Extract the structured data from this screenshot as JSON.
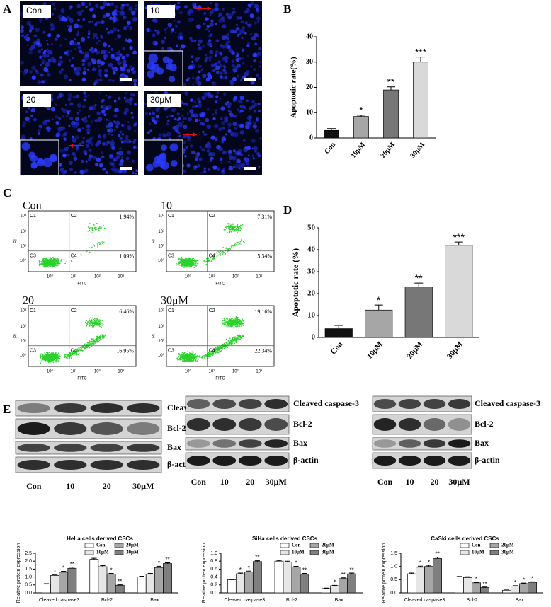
{
  "panel_labels": [
    "A",
    "B",
    "C",
    "D",
    "E"
  ],
  "fluorescence": {
    "labels": [
      "Con",
      "10",
      "20",
      "30μM"
    ]
  },
  "flow": {
    "x_label": "FITC",
    "y_label": "PI",
    "ticks": [
      "10⁰",
      "10¹",
      "10²",
      "10³"
    ],
    "quadrants": [
      "C1",
      "C2",
      "C3",
      "C4"
    ],
    "panels": [
      {
        "title": "Con",
        "upper_right": "1.94%",
        "lower_right": "1.09%"
      },
      {
        "title": "10",
        "upper_right": "7.31%",
        "lower_right": "5.34%"
      },
      {
        "title": "20",
        "upper_right": "6.46%",
        "lower_right": "16.95%"
      },
      {
        "title": "30μM",
        "upper_right": "19.16%",
        "lower_right": "22.34%"
      }
    ]
  },
  "blots": {
    "bands": [
      "Cleaved caspase-3",
      "Bcl-2",
      "Bax",
      "β-actin"
    ],
    "lanes": [
      "Con",
      "10",
      "20",
      "30μM"
    ]
  },
  "chart_data": [
    {
      "type": "bar",
      "ylabel": "Apoptotic rate(%)",
      "categories": [
        "Con",
        "10μM",
        "20μM",
        "30μM"
      ],
      "values": [
        3,
        8.5,
        19,
        30
      ],
      "errors": [
        0.7,
        0.5,
        1.2,
        2
      ],
      "significance": [
        null,
        "*",
        "**",
        "***"
      ],
      "colors": [
        "#111111",
        "#a6a6a6",
        "#777777",
        "#d9d9d9"
      ],
      "ylim": [
        0,
        40
      ],
      "yticks": [
        0,
        10,
        20,
        30,
        40
      ]
    },
    {
      "type": "bar",
      "ylabel": "Apoptotic rate (%)",
      "categories": [
        "Con",
        "10μM",
        "20μM",
        "30μM"
      ],
      "values": [
        4,
        12.5,
        23,
        42
      ],
      "errors": [
        1.5,
        2.3,
        1.8,
        1.5
      ],
      "significance": [
        null,
        "*",
        "**",
        "***"
      ],
      "colors": [
        "#111111",
        "#a6a6a6",
        "#777777",
        "#d9d9d9"
      ],
      "ylim": [
        0,
        50
      ],
      "yticks": [
        0,
        10,
        20,
        30,
        40,
        50
      ]
    },
    {
      "type": "bar",
      "title": "HeLa cells derived CSCs",
      "ylabel": "Relative protein expression",
      "categories": [
        "Cleaved caspase3",
        "Bcl-2",
        "Bax"
      ],
      "series": [
        {
          "name": "Con",
          "color": "#ffffff",
          "values": [
            0.55,
            2.12,
            1.0
          ],
          "errors": [
            0.03,
            0.06,
            0.05
          ],
          "significance": [
            null,
            null,
            null
          ]
        },
        {
          "name": "10μM",
          "color": "#e6e6e6",
          "values": [
            1.1,
            1.65,
            1.18
          ],
          "errors": [
            0.05,
            0.07,
            0.05
          ],
          "significance": [
            "*",
            null,
            null
          ]
        },
        {
          "name": "20μM",
          "color": "#a6a6a6",
          "values": [
            1.3,
            1.18,
            1.6
          ],
          "errors": [
            0.06,
            0.05,
            0.08
          ],
          "significance": [
            "*",
            "*",
            "*"
          ]
        },
        {
          "name": "30μM",
          "color": "#7f7f7f",
          "values": [
            1.55,
            0.48,
            1.85
          ],
          "errors": [
            0.07,
            0.03,
            0.05
          ],
          "significance": [
            "**",
            "**",
            "**"
          ]
        }
      ],
      "ylim": [
        0,
        2.5
      ],
      "yticks": [
        {
          "value": 0,
          "label": "0.0"
        },
        0.5,
        {
          "value": 1,
          "label": "1.0"
        },
        1.5,
        {
          "value": 2,
          "label": "2.0"
        },
        2.5
      ]
    },
    {
      "type": "bar",
      "title": "SiHa cells derived CSCs",
      "ylabel": "Relative protein expression",
      "categories": [
        "Cleaved caspase3",
        "Bcl-2",
        "Bax"
      ],
      "series": [
        {
          "name": "Con",
          "color": "#ffffff",
          "values": [
            0.33,
            0.8,
            0.11
          ],
          "errors": [
            0.01,
            0.02,
            0.01
          ],
          "significance": [
            null,
            null,
            null
          ]
        },
        {
          "name": "10μM",
          "color": "#e6e6e6",
          "values": [
            0.48,
            0.78,
            0.18
          ],
          "errors": [
            0.02,
            0.02,
            0.01
          ],
          "significance": [
            "*",
            null,
            "*"
          ]
        },
        {
          "name": "20μM",
          "color": "#a6a6a6",
          "values": [
            0.53,
            0.65,
            0.36
          ],
          "errors": [
            0.02,
            0.02,
            0.02
          ],
          "significance": [
            "*",
            "*",
            "**"
          ]
        },
        {
          "name": "30μM",
          "color": "#7f7f7f",
          "values": [
            0.79,
            0.47,
            0.48
          ],
          "errors": [
            0.02,
            0.02,
            0.02
          ],
          "significance": [
            "**",
            "**",
            "**"
          ]
        }
      ],
      "ylim": [
        0,
        1
      ],
      "yticks": [
        {
          "value": 0,
          "label": "0.0"
        },
        0.2,
        0.4,
        0.6,
        0.8,
        {
          "value": 1,
          "label": "1.0"
        }
      ]
    },
    {
      "type": "bar",
      "title": "CaSki cells derived CSCs",
      "ylabel": "Relative protein expression",
      "categories": [
        "Cleaved caspase3",
        "Bcl-2",
        "Bax"
      ],
      "series": [
        {
          "name": "Con",
          "color": "#ffffff",
          "values": [
            0.72,
            0.6,
            0.1
          ],
          "errors": [
            0.03,
            0.02,
            0.01
          ],
          "significance": [
            null,
            null,
            null
          ]
        },
        {
          "name": "10μM",
          "color": "#e6e6e6",
          "values": [
            0.97,
            0.58,
            0.25
          ],
          "errors": [
            0.04,
            0.03,
            0.02
          ],
          "significance": [
            "*",
            null,
            "*"
          ]
        },
        {
          "name": "20μM",
          "color": "#a6a6a6",
          "values": [
            1.0,
            0.38,
            0.35
          ],
          "errors": [
            0.04,
            0.02,
            0.02
          ],
          "significance": [
            "*",
            "*",
            "*"
          ]
        },
        {
          "name": "30μM",
          "color": "#7f7f7f",
          "values": [
            1.3,
            0.2,
            0.4
          ],
          "errors": [
            0.05,
            0.02,
            0.02
          ],
          "significance": [
            "**",
            "**",
            "*"
          ]
        }
      ],
      "ylim": [
        0,
        1.5
      ],
      "yticks": [
        {
          "value": 0,
          "label": "0.0"
        },
        0.5,
        {
          "value": 1,
          "label": "1.0"
        },
        1.5
      ]
    }
  ]
}
